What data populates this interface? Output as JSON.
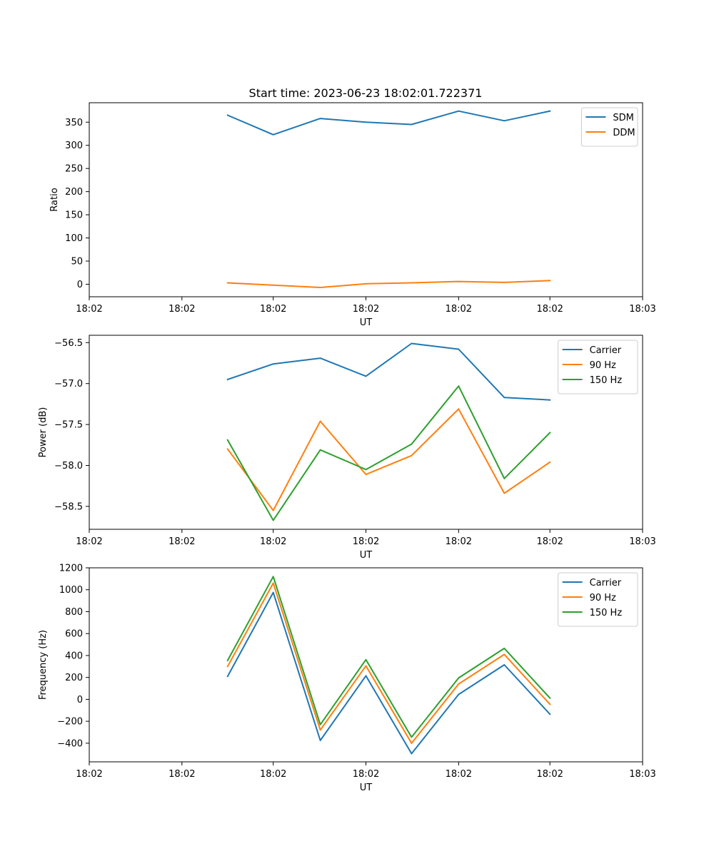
{
  "figure": {
    "title": "Start time: 2023-06-23 18:02:01.722371"
  },
  "colors": {
    "blue": "#1f77b4",
    "orange": "#ff7f0e",
    "green": "#2ca02c"
  },
  "chart_data": [
    {
      "type": "line",
      "title": "Start time: 2023-06-23 18:02:01.722371",
      "xlabel": "UT",
      "ylabel": "Ratio",
      "x": [
        1.0,
        1.33,
        1.67,
        2.0,
        2.33,
        2.67,
        3.0,
        3.33
      ],
      "xlim": [
        0.0,
        4.0
      ],
      "xticks": [
        0.0,
        0.67,
        1.33,
        2.0,
        2.67,
        3.33,
        4.0
      ],
      "xtick_labels": [
        "18:02",
        "18:02",
        "18:02",
        "18:02",
        "18:02",
        "18:02",
        "18:03"
      ],
      "ylim": [
        -27,
        392
      ],
      "yticks": [
        0,
        50,
        100,
        150,
        200,
        250,
        300,
        350
      ],
      "legend_position": "top-right",
      "grid": false,
      "series": [
        {
          "name": "SDM",
          "color": "#1f77b4",
          "values": [
            365,
            323,
            358,
            350,
            345,
            374,
            353,
            374
          ]
        },
        {
          "name": "DDM",
          "color": "#ff7f0e",
          "values": [
            3,
            -2,
            -7,
            1,
            3,
            6,
            4,
            8
          ]
        }
      ]
    },
    {
      "type": "line",
      "title": "",
      "xlabel": "UT",
      "ylabel": "Power (dB)",
      "x": [
        1.0,
        1.33,
        1.67,
        2.0,
        2.33,
        2.67,
        3.0,
        3.33
      ],
      "xlim": [
        0.0,
        4.0
      ],
      "xticks": [
        0.0,
        0.67,
        1.33,
        2.0,
        2.67,
        3.33,
        4.0
      ],
      "xtick_labels": [
        "18:02",
        "18:02",
        "18:02",
        "18:02",
        "18:02",
        "18:02",
        "18:03"
      ],
      "ylim": [
        -58.78,
        -56.41
      ],
      "yticks": [
        -58.5,
        -58.0,
        -57.5,
        -57.0,
        -56.5
      ],
      "ytick_labels": [
        "−58.5",
        "−58.0",
        "−57.5",
        "−57.0",
        "−56.5"
      ],
      "legend_position": "top-right",
      "grid": false,
      "series": [
        {
          "name": "Carrier",
          "color": "#1f77b4",
          "values": [
            -56.95,
            -56.76,
            -56.69,
            -56.91,
            -56.51,
            -56.58,
            -57.17,
            -57.2
          ]
        },
        {
          "name": "90 Hz",
          "color": "#ff7f0e",
          "values": [
            -57.8,
            -58.55,
            -57.46,
            -58.11,
            -57.88,
            -57.31,
            -58.34,
            -57.96
          ]
        },
        {
          "name": "150 Hz",
          "color": "#2ca02c",
          "values": [
            -57.69,
            -58.67,
            -57.81,
            -58.05,
            -57.74,
            -57.03,
            -58.16,
            -57.6
          ]
        }
      ]
    },
    {
      "type": "line",
      "title": "",
      "xlabel": "UT",
      "ylabel": "Frequency (Hz)",
      "x": [
        1.0,
        1.33,
        1.67,
        2.0,
        2.33,
        2.67,
        3.0,
        3.33
      ],
      "xlim": [
        0.0,
        4.0
      ],
      "xticks": [
        0.0,
        0.67,
        1.33,
        2.0,
        2.67,
        3.33,
        4.0
      ],
      "xtick_labels": [
        "18:02",
        "18:02",
        "18:02",
        "18:02",
        "18:02",
        "18:02",
        "18:03"
      ],
      "ylim": [
        -570,
        1200
      ],
      "yticks": [
        -400,
        -200,
        0,
        200,
        400,
        600,
        800,
        1000,
        1200
      ],
      "ytick_labels": [
        "−400",
        "−200",
        "0",
        "200",
        "400",
        "600",
        "800",
        "1000",
        "1200"
      ],
      "legend_position": "top-right",
      "grid": false,
      "series": [
        {
          "name": "Carrier",
          "color": "#1f77b4",
          "values": [
            210,
            975,
            -375,
            215,
            -495,
            45,
            315,
            -135
          ]
        },
        {
          "name": "90 Hz",
          "color": "#ff7f0e",
          "values": [
            300,
            1060,
            -280,
            305,
            -400,
            140,
            410,
            -45
          ]
        },
        {
          "name": "150 Hz",
          "color": "#2ca02c",
          "values": [
            355,
            1120,
            -230,
            362,
            -345,
            195,
            465,
            12
          ]
        }
      ]
    }
  ]
}
